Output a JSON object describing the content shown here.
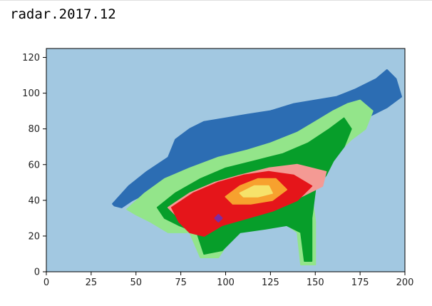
{
  "cell": {
    "label": "radar.2017.12"
  },
  "chart_data": {
    "type": "heatmap",
    "title": "",
    "xlabel": "",
    "ylabel": "",
    "xlim": [
      0,
      200
    ],
    "ylim": [
      0,
      125
    ],
    "xticks": [
      0,
      25,
      50,
      75,
      100,
      125,
      150,
      175,
      200
    ],
    "yticks": [
      0,
      20,
      40,
      60,
      80,
      100,
      120
    ],
    "grid": false,
    "legend": "none",
    "colors": {
      "background": "#a2c8e1",
      "band_outer": "#2c6db3",
      "band_light_green": "#93e58a",
      "band_green": "#079e2a",
      "band_pink": "#f49a94",
      "band_red": "#e5151a",
      "band_orange": "#f7a12e",
      "band_yellow": "#f6e26a",
      "band_purple": "#7c2ca0"
    },
    "regions": [
      {
        "category": "band_outer",
        "polygon": [
          [
            37,
            38
          ],
          [
            46,
            48
          ],
          [
            56,
            56
          ],
          [
            68,
            64
          ],
          [
            72,
            74
          ],
          [
            80,
            80
          ],
          [
            88,
            84
          ],
          [
            100,
            86
          ],
          [
            112,
            88
          ],
          [
            125,
            90
          ],
          [
            138,
            94
          ],
          [
            150,
            96
          ],
          [
            162,
            98
          ],
          [
            172,
            102
          ],
          [
            184,
            108
          ],
          [
            190,
            113
          ],
          [
            195,
            108
          ],
          [
            198,
            98
          ],
          [
            190,
            92
          ],
          [
            178,
            86
          ],
          [
            168,
            82
          ],
          [
            160,
            76
          ],
          [
            152,
            70
          ],
          [
            145,
            66
          ],
          [
            132,
            62
          ],
          [
            120,
            60
          ],
          [
            100,
            56
          ],
          [
            80,
            52
          ],
          [
            60,
            46
          ],
          [
            48,
            40
          ],
          [
            42,
            36
          ],
          [
            38,
            37
          ]
        ]
      },
      {
        "category": "band_light_green",
        "polygon": [
          [
            45,
            35
          ],
          [
            55,
            44
          ],
          [
            66,
            52
          ],
          [
            80,
            58
          ],
          [
            96,
            64
          ],
          [
            112,
            68
          ],
          [
            125,
            72
          ],
          [
            140,
            78
          ],
          [
            150,
            84
          ],
          [
            160,
            90
          ],
          [
            168,
            94
          ],
          [
            175,
            96
          ],
          [
            182,
            90
          ],
          [
            178,
            80
          ],
          [
            170,
            74
          ],
          [
            162,
            66
          ],
          [
            158,
            58
          ],
          [
            154,
            52
          ],
          [
            148,
            44
          ],
          [
            150,
            28
          ],
          [
            150,
            4
          ],
          [
            142,
            4
          ],
          [
            140,
            22
          ],
          [
            132,
            28
          ],
          [
            120,
            24
          ],
          [
            105,
            22
          ],
          [
            96,
            8
          ],
          [
            86,
            8
          ],
          [
            80,
            22
          ],
          [
            68,
            22
          ],
          [
            58,
            28
          ],
          [
            50,
            32
          ]
        ]
      },
      {
        "category": "band_green",
        "polygon": [
          [
            62,
            36
          ],
          [
            72,
            44
          ],
          [
            86,
            52
          ],
          [
            100,
            58
          ],
          [
            116,
            62
          ],
          [
            132,
            66
          ],
          [
            146,
            72
          ],
          [
            158,
            80
          ],
          [
            166,
            86
          ],
          [
            170,
            80
          ],
          [
            166,
            70
          ],
          [
            160,
            62
          ],
          [
            156,
            54
          ],
          [
            150,
            46
          ],
          [
            148,
            30
          ],
          [
            148,
            6
          ],
          [
            144,
            6
          ],
          [
            142,
            22
          ],
          [
            134,
            26
          ],
          [
            122,
            24
          ],
          [
            108,
            22
          ],
          [
            98,
            12
          ],
          [
            88,
            10
          ],
          [
            84,
            22
          ],
          [
            74,
            26
          ],
          [
            66,
            30
          ]
        ]
      },
      {
        "category": "band_pink",
        "polygon": [
          [
            68,
            36
          ],
          [
            80,
            44
          ],
          [
            94,
            50
          ],
          [
            108,
            54
          ],
          [
            124,
            58
          ],
          [
            140,
            60
          ],
          [
            156,
            56
          ],
          [
            154,
            48
          ],
          [
            142,
            42
          ],
          [
            126,
            38
          ],
          [
            112,
            34
          ],
          [
            98,
            30
          ],
          [
            84,
            28
          ],
          [
            72,
            32
          ]
        ]
      },
      {
        "category": "band_red",
        "polygon": [
          [
            70,
            36
          ],
          [
            82,
            44
          ],
          [
            96,
            50
          ],
          [
            110,
            54
          ],
          [
            124,
            56
          ],
          [
            138,
            54
          ],
          [
            148,
            48
          ],
          [
            140,
            40
          ],
          [
            126,
            34
          ],
          [
            112,
            30
          ],
          [
            98,
            26
          ],
          [
            88,
            20
          ],
          [
            80,
            22
          ],
          [
            74,
            28
          ]
        ]
      },
      {
        "category": "band_orange",
        "polygon": [
          [
            100,
            42
          ],
          [
            108,
            48
          ],
          [
            118,
            52
          ],
          [
            128,
            52
          ],
          [
            134,
            46
          ],
          [
            126,
            40
          ],
          [
            114,
            38
          ],
          [
            104,
            38
          ]
        ]
      },
      {
        "category": "band_yellow",
        "polygon": [
          [
            108,
            44
          ],
          [
            116,
            48
          ],
          [
            124,
            48
          ],
          [
            126,
            44
          ],
          [
            118,
            42
          ],
          [
            110,
            42
          ]
        ]
      },
      {
        "category": "band_purple",
        "polygon": [
          [
            94,
            30
          ],
          [
            96,
            32
          ],
          [
            98,
            30
          ],
          [
            96,
            28
          ]
        ]
      }
    ]
  }
}
